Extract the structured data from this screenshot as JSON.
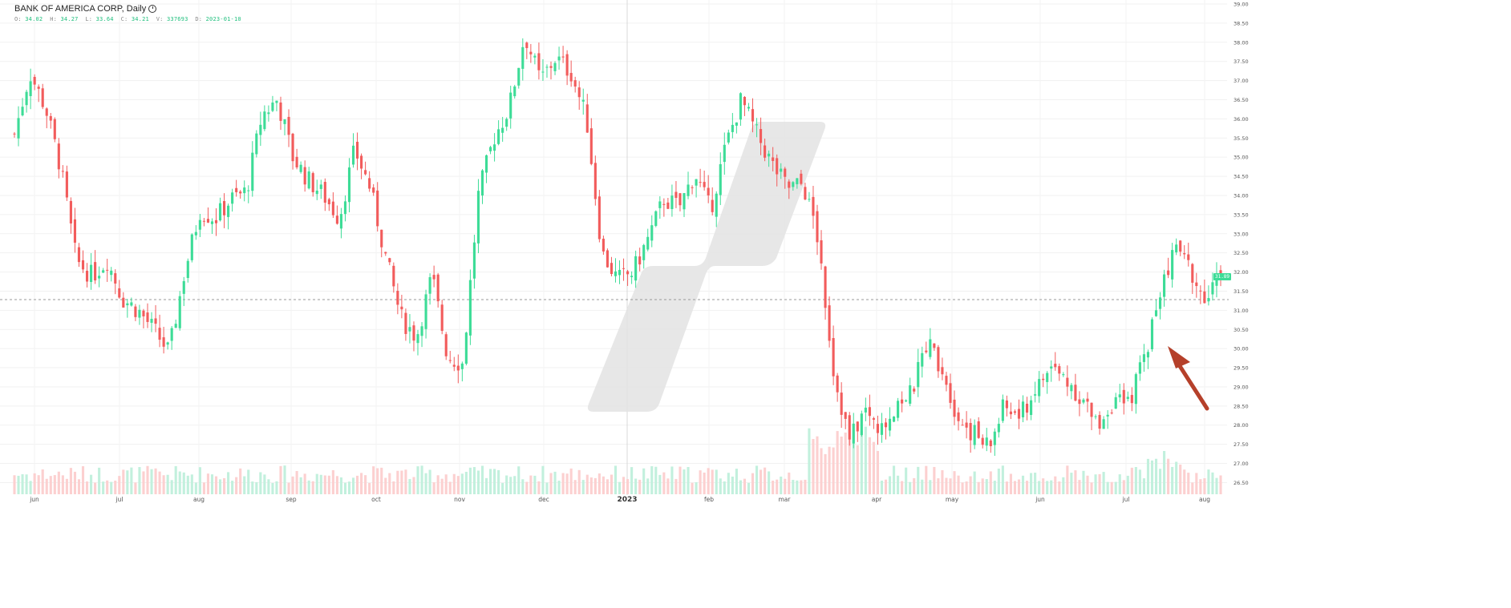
{
  "header": {
    "title": "BANK OF AMERICA CORP, Daily",
    "ohlc": [
      {
        "key": "O:",
        "value": "34.02"
      },
      {
        "key": "H:",
        "value": "34.27"
      },
      {
        "key": "L:",
        "value": "33.64"
      },
      {
        "key": "C:",
        "value": "34.21"
      },
      {
        "key": "V:",
        "value": "337693"
      },
      {
        "key": "D:",
        "value": "2023-01-10"
      }
    ],
    "clock_icon": "clock-icon"
  },
  "last_price_label": "31.89",
  "colors": {
    "up": "#3ddc97",
    "down": "#f25c5c",
    "up_volume": "#c2f0dd",
    "down_volume": "#fcd0d0",
    "arrow": "#b5402a"
  },
  "chart_data": {
    "type": "candlestick",
    "y_axis_ticks": [
      "26.50",
      "27.00",
      "27.50",
      "28.00",
      "28.50",
      "29.00",
      "29.50",
      "30.00",
      "30.50",
      "31.00",
      "31.50",
      "32.00",
      "32.50",
      "33.00",
      "33.50",
      "34.00",
      "34.50",
      "35.00",
      "35.50",
      "36.00",
      "36.50",
      "37.00",
      "37.50",
      "38.00",
      "38.50",
      "39.00"
    ],
    "ylim": [
      26.3,
      39.0
    ],
    "x_axis_labels": [
      "jun",
      "jul",
      "aug",
      "sep",
      "oct",
      "nov",
      "dec",
      "2023",
      "feb",
      "mar",
      "apr",
      "may",
      "jun",
      "jul",
      "aug"
    ],
    "last_close": 31.89,
    "reference_line": 31.28,
    "close_path": [
      [
        "jun",
        35.6
      ],
      [
        "jun",
        37.2
      ],
      [
        "jun",
        36.3
      ],
      [
        "jun",
        34.7
      ],
      [
        "jun",
        32.3
      ],
      [
        "jun",
        31.9
      ],
      [
        "jul",
        32.3
      ],
      [
        "jul",
        31.3
      ],
      [
        "jul",
        31.0
      ],
      [
        "jul",
        30.5
      ],
      [
        "jul",
        29.9
      ],
      [
        "jul",
        32.0
      ],
      [
        "aug",
        33.6
      ],
      [
        "aug",
        33.4
      ],
      [
        "aug",
        33.9
      ],
      [
        "aug",
        34.1
      ],
      [
        "aug",
        36.1
      ],
      [
        "aug",
        36.5
      ],
      [
        "aug",
        35.0
      ],
      [
        "sep",
        34.4
      ],
      [
        "sep",
        34.0
      ],
      [
        "sep",
        33.4
      ],
      [
        "sep",
        35.2
      ],
      [
        "sep",
        34.2
      ],
      [
        "sep",
        32.4
      ],
      [
        "oct",
        30.8
      ],
      [
        "oct",
        30.3
      ],
      [
        "oct",
        31.9
      ],
      [
        "oct",
        29.8
      ],
      [
        "oct",
        29.6
      ],
      [
        "oct",
        34.0
      ],
      [
        "nov",
        35.5
      ],
      [
        "nov",
        36.3
      ],
      [
        "nov",
        38.2
      ],
      [
        "nov",
        37.0
      ],
      [
        "nov",
        37.6
      ],
      [
        "nov",
        37.2
      ],
      [
        "dec",
        36.0
      ],
      [
        "dec",
        32.5
      ],
      [
        "dec",
        31.8
      ],
      [
        "dec",
        32.0
      ],
      [
        "dec",
        32.9
      ],
      [
        "dec",
        33.9
      ],
      [
        "2023",
        33.7
      ],
      [
        "2023",
        34.6
      ],
      [
        "2023",
        33.6
      ],
      [
        "2023",
        35.3
      ],
      [
        "2023",
        36.5
      ],
      [
        "feb",
        35.6
      ],
      [
        "feb",
        34.8
      ],
      [
        "feb",
        34.2
      ],
      [
        "feb",
        34.3
      ],
      [
        "mar",
        32.8
      ],
      [
        "mar",
        29.3
      ],
      [
        "mar",
        27.6
      ],
      [
        "mar",
        28.4
      ],
      [
        "mar",
        27.8
      ],
      [
        "apr",
        28.6
      ],
      [
        "apr",
        28.8
      ],
      [
        "apr",
        30.2
      ],
      [
        "apr",
        29.5
      ],
      [
        "apr",
        28.2
      ],
      [
        "may",
        27.8
      ],
      [
        "may",
        27.4
      ],
      [
        "may",
        28.5
      ],
      [
        "may",
        28.2
      ],
      [
        "may",
        28.9
      ],
      [
        "jun",
        29.5
      ],
      [
        "jun",
        29.2
      ],
      [
        "jun",
        28.7
      ],
      [
        "jun",
        28.0
      ],
      [
        "jun",
        28.6
      ],
      [
        "jul",
        28.5
      ],
      [
        "jul",
        29.7
      ],
      [
        "jul",
        31.3
      ],
      [
        "jul",
        32.7
      ],
      [
        "jul",
        32.1
      ],
      [
        "aug",
        31.2
      ],
      [
        "aug",
        31.89
      ]
    ],
    "annotation": "arrow pointing to early-july breakout"
  }
}
